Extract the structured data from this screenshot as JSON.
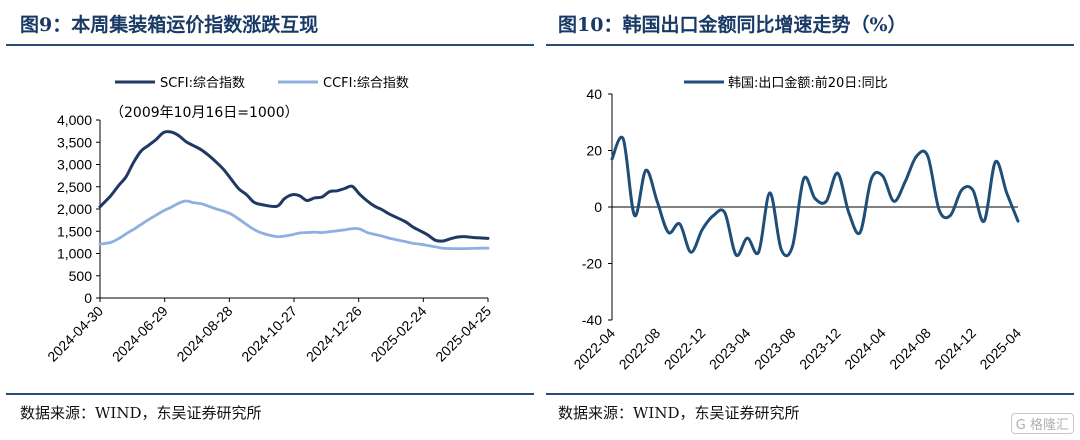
{
  "left": {
    "title": "图9：本周集装箱运价指数涨跌互现",
    "source": "数据来源：WIND，东吴证券研究所",
    "chart_data": {
      "type": "line",
      "title": "图9：本周集装箱运价指数涨跌互现",
      "annotation": "（2009年10月16日=1000）",
      "x_tick_labels": [
        "2024-04-30",
        "2024-06-29",
        "2024-08-28",
        "2024-10-27",
        "2024-12-26",
        "2025-02-24",
        "2025-04-25"
      ],
      "y_tick_labels": [
        "0",
        "500",
        "1,000",
        "1,500",
        "2,000",
        "2,500",
        "3,000",
        "3,500",
        "4,000"
      ],
      "ylim": [
        0,
        4000
      ],
      "legend_position": "top",
      "x": [
        "2024-04-30",
        "2024-05-10",
        "2024-05-17",
        "2024-05-24",
        "2024-05-31",
        "2024-06-07",
        "2024-06-14",
        "2024-06-21",
        "2024-06-28",
        "2024-07-05",
        "2024-07-12",
        "2024-07-19",
        "2024-07-26",
        "2024-08-02",
        "2024-08-09",
        "2024-08-16",
        "2024-08-23",
        "2024-08-30",
        "2024-09-06",
        "2024-09-13",
        "2024-09-20",
        "2024-09-27",
        "2024-10-11",
        "2024-10-18",
        "2024-10-25",
        "2024-11-01",
        "2024-11-08",
        "2024-11-15",
        "2024-11-22",
        "2024-11-29",
        "2024-12-06",
        "2024-12-13",
        "2024-12-20",
        "2024-12-27",
        "2025-01-03",
        "2025-01-10",
        "2025-01-17",
        "2025-01-24",
        "2025-02-07",
        "2025-02-14",
        "2025-02-21",
        "2025-02-28",
        "2025-03-07",
        "2025-03-14",
        "2025-03-21",
        "2025-03-28",
        "2025-04-03",
        "2025-04-11",
        "2025-04-18",
        "2025-04-25"
      ],
      "series": [
        {
          "name": "SCFI:综合指数",
          "color": "#1f3864",
          "values": [
            2050,
            2300,
            2520,
            2720,
            3040,
            3300,
            3430,
            3560,
            3720,
            3730,
            3650,
            3510,
            3420,
            3330,
            3200,
            3050,
            2880,
            2660,
            2450,
            2320,
            2150,
            2100,
            2060,
            2230,
            2320,
            2300,
            2190,
            2250,
            2270,
            2390,
            2410,
            2460,
            2510,
            2330,
            2180,
            2060,
            1980,
            1880,
            1720,
            1600,
            1510,
            1420,
            1300,
            1280,
            1330,
            1370,
            1380,
            1360,
            1350,
            1340
          ]
        },
        {
          "name": "CCFI:综合指数",
          "color": "#8db0e0",
          "values": [
            1210,
            1250,
            1330,
            1440,
            1540,
            1650,
            1760,
            1860,
            1960,
            2040,
            2130,
            2180,
            2140,
            2120,
            2060,
            2000,
            1950,
            1880,
            1770,
            1650,
            1540,
            1460,
            1380,
            1390,
            1420,
            1460,
            1470,
            1480,
            1470,
            1490,
            1510,
            1530,
            1560,
            1550,
            1470,
            1430,
            1390,
            1340,
            1270,
            1230,
            1210,
            1180,
            1150,
            1120,
            1110,
            1110,
            1110,
            1115,
            1120,
            1120
          ]
        }
      ]
    }
  },
  "right": {
    "title": "图10：韩国出口金额同比增速走势（%）",
    "source": "数据来源：WIND，东吴证券研究所",
    "chart_data": {
      "type": "line",
      "title": "图10：韩国出口金额同比增速走势（%）",
      "x_tick_labels": [
        "2022-04",
        "2022-08",
        "2022-12",
        "2023-04",
        "2023-08",
        "2023-12",
        "2024-04",
        "2024-08",
        "2024-12",
        "2025-04"
      ],
      "y_tick_labels": [
        "-40",
        "-20",
        "0",
        "20",
        "40"
      ],
      "ylim": [
        -40,
        40
      ],
      "legend_position": "top",
      "x": [
        "2022-04",
        "2022-05",
        "2022-06",
        "2022-07",
        "2022-08",
        "2022-09",
        "2022-10",
        "2022-11",
        "2022-12",
        "2023-01",
        "2023-02",
        "2023-03",
        "2023-04",
        "2023-05",
        "2023-06",
        "2023-07",
        "2023-08",
        "2023-09",
        "2023-10",
        "2023-11",
        "2023-12",
        "2024-01",
        "2024-02",
        "2024-03",
        "2024-04",
        "2024-05",
        "2024-06",
        "2024-07",
        "2024-08",
        "2024-09",
        "2024-10",
        "2024-11",
        "2024-12",
        "2025-01",
        "2025-02",
        "2025-03",
        "2025-04"
      ],
      "series": [
        {
          "name": "韩国:出口金额:前20日:同比",
          "color": "#1f4e79",
          "values": [
            17,
            24,
            -3,
            13,
            2,
            -9,
            -6,
            -16,
            -8,
            -3,
            -2,
            -17,
            -11,
            -16,
            5,
            -15,
            -14,
            10,
            3,
            2,
            12,
            -2,
            -9,
            10,
            11,
            2,
            9,
            18,
            18,
            -1,
            -3,
            6,
            6,
            -5,
            16,
            5,
            -5
          ]
        }
      ]
    }
  }
}
